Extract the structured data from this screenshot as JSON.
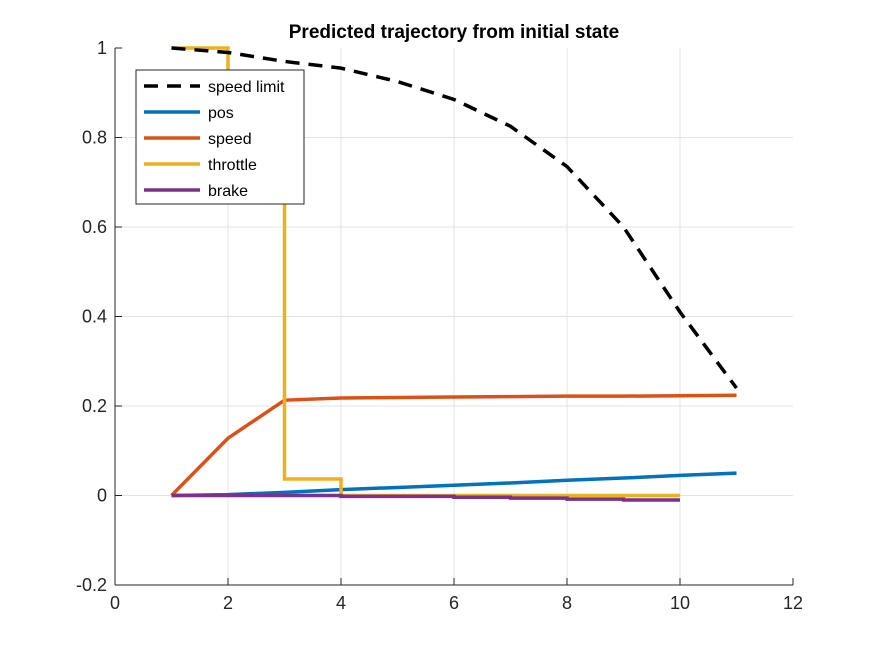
{
  "chart_data": {
    "type": "line",
    "title": "Predicted trajectory from initial state",
    "xlabel": "",
    "ylabel": "",
    "xlim": [
      0,
      12
    ],
    "ylim": [
      -0.2,
      1
    ],
    "xticks": [
      0,
      2,
      4,
      6,
      8,
      10,
      12
    ],
    "yticks": [
      -0.2,
      0,
      0.2,
      0.4,
      0.6,
      0.8,
      1
    ],
    "xtick_labels": [
      "0",
      "2",
      "4",
      "6",
      "8",
      "10",
      "12"
    ],
    "ytick_labels": [
      "-0.2",
      "0",
      "0.2",
      "0.4",
      "0.6",
      "0.8",
      "1"
    ],
    "grid": true,
    "legend_position": "top-left",
    "series": [
      {
        "name": "speed limit",
        "style": "dashed",
        "color": "#000000",
        "step": false,
        "x": [
          1,
          2,
          3,
          4,
          5,
          6,
          7,
          8,
          9,
          10,
          11
        ],
        "y": [
          1.0,
          0.99,
          0.97,
          0.955,
          0.925,
          0.885,
          0.825,
          0.735,
          0.6,
          0.41,
          0.24
        ]
      },
      {
        "name": "pos",
        "style": "solid",
        "color": "#0072BD",
        "step": false,
        "x": [
          1,
          2,
          3,
          4,
          5,
          6,
          7,
          8,
          9,
          10,
          11
        ],
        "y": [
          0.0,
          0.002,
          0.007,
          0.013,
          0.018,
          0.023,
          0.028,
          0.034,
          0.039,
          0.045,
          0.05
        ]
      },
      {
        "name": "speed",
        "style": "solid",
        "color": "#D95319",
        "step": false,
        "x": [
          1,
          2,
          3,
          4,
          5,
          6,
          7,
          8,
          9,
          10,
          11
        ],
        "y": [
          0.0,
          0.128,
          0.213,
          0.218,
          0.219,
          0.22,
          0.221,
          0.222,
          0.222,
          0.223,
          0.224
        ]
      },
      {
        "name": "throttle",
        "style": "solid",
        "color": "#EDB120",
        "step": true,
        "x": [
          1,
          2,
          3,
          4,
          5,
          6,
          7,
          8,
          9,
          10
        ],
        "y": [
          1.0,
          0.71,
          0.037,
          0.0,
          0.0,
          0.0,
          0.0,
          0.0,
          0.0,
          0.0
        ]
      },
      {
        "name": "brake",
        "style": "solid",
        "color": "#7E2F8E",
        "step": true,
        "x": [
          1,
          2,
          3,
          4,
          5,
          6,
          7,
          8,
          9,
          10
        ],
        "y": [
          0.0,
          0.0,
          0.0,
          -0.002,
          -0.002,
          -0.004,
          -0.006,
          -0.008,
          -0.01,
          -0.01
        ]
      }
    ]
  }
}
